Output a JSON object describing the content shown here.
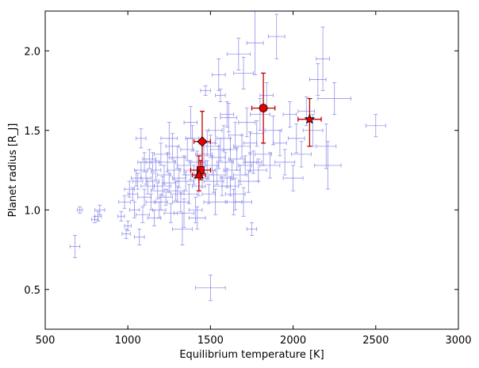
{
  "chart_data": {
    "type": "scatter",
    "xlabel": "Equilibrium temperature [K]",
    "ylabel": "Planet radius [R_J]",
    "xlim": [
      500,
      3000
    ],
    "ylim": [
      0.25,
      2.25
    ],
    "xticks": [
      500,
      1000,
      1500,
      2000,
      2500,
      3000
    ],
    "yticks": [
      0.5,
      1.0,
      1.5,
      2.0
    ],
    "xtick_labels": [
      "500",
      "1000",
      "1500",
      "2000",
      "2500",
      "3000"
    ],
    "ytick_labels": [
      "0.5",
      "1.0",
      "1.5",
      "2.0"
    ],
    "grid": false,
    "legend": "none",
    "background_series": {
      "color": "#6f6fe6",
      "marker": "errorbar-only",
      "points": [
        [
          680,
          0.77,
          30,
          0.07
        ],
        [
          710,
          1.0,
          15,
          0.02
        ],
        [
          800,
          0.94,
          20,
          0.02
        ],
        [
          820,
          0.96,
          20,
          0.03
        ],
        [
          830,
          1.0,
          30,
          0.03
        ],
        [
          960,
          0.96,
          20,
          0.03
        ],
        [
          980,
          1.05,
          35,
          0.04
        ],
        [
          990,
          0.85,
          25,
          0.03
        ],
        [
          1000,
          0.9,
          20,
          0.03
        ],
        [
          1010,
          1.13,
          30,
          0.05
        ],
        [
          1030,
          1.1,
          30,
          0.04
        ],
        [
          1040,
          1.0,
          30,
          0.05
        ],
        [
          1060,
          1.18,
          30,
          0.05
        ],
        [
          1070,
          0.83,
          30,
          0.05
        ],
        [
          1080,
          1.25,
          40,
          0.05
        ],
        [
          1090,
          0.97,
          40,
          0.05
        ],
        [
          1100,
          1.08,
          40,
          0.05
        ],
        [
          1110,
          1.2,
          30,
          0.04
        ],
        [
          1120,
          1.15,
          40,
          0.05
        ],
        [
          1130,
          1.32,
          40,
          0.06
        ],
        [
          1140,
          1.05,
          30,
          0.05
        ],
        [
          1150,
          1.18,
          40,
          0.05
        ],
        [
          1160,
          0.95,
          40,
          0.05
        ],
        [
          1170,
          1.25,
          30,
          0.06
        ],
        [
          1180,
          1.12,
          40,
          0.05
        ],
        [
          1190,
          1.0,
          40,
          0.05
        ],
        [
          1200,
          1.35,
          40,
          0.07
        ],
        [
          1210,
          1.15,
          50,
          0.06
        ],
        [
          1220,
          1.22,
          40,
          0.06
        ],
        [
          1230,
          1.08,
          40,
          0.05
        ],
        [
          1240,
          1.3,
          50,
          0.06
        ],
        [
          1250,
          1.17,
          40,
          0.06
        ],
        [
          1260,
          0.98,
          40,
          0.06
        ],
        [
          1270,
          1.4,
          40,
          0.08
        ],
        [
          1280,
          1.25,
          40,
          0.06
        ],
        [
          1290,
          1.12,
          50,
          0.06
        ],
        [
          1300,
          1.33,
          50,
          0.07
        ],
        [
          1310,
          1.2,
          40,
          0.06
        ],
        [
          1320,
          1.05,
          50,
          0.06
        ],
        [
          1330,
          0.88,
          60,
          0.1
        ],
        [
          1340,
          1.28,
          40,
          0.06
        ],
        [
          1350,
          1.18,
          50,
          0.06
        ],
        [
          1360,
          1.38,
          40,
          0.07
        ],
        [
          1370,
          1.1,
          50,
          0.06
        ],
        [
          1380,
          1.25,
          40,
          0.06
        ],
        [
          1390,
          1.45,
          40,
          0.08
        ],
        [
          1400,
          1.22,
          50,
          0.06
        ],
        [
          1410,
          1.0,
          40,
          0.08
        ],
        [
          1420,
          1.3,
          50,
          0.07
        ],
        [
          1430,
          1.15,
          40,
          0.06
        ],
        [
          1460,
          1.35,
          50,
          0.07
        ],
        [
          1470,
          1.75,
          30,
          0.03
        ],
        [
          1480,
          1.25,
          50,
          0.06
        ],
        [
          1490,
          1.1,
          40,
          0.06
        ],
        [
          1500,
          1.4,
          50,
          0.07
        ],
        [
          1510,
          1.28,
          40,
          0.06
        ],
        [
          1520,
          1.18,
          60,
          0.07
        ],
        [
          1530,
          1.5,
          40,
          0.08
        ],
        [
          1540,
          1.22,
          50,
          0.06
        ],
        [
          1550,
          1.33,
          40,
          0.07
        ],
        [
          1560,
          1.72,
          30,
          0.04
        ],
        [
          1570,
          1.15,
          50,
          0.06
        ],
        [
          1580,
          1.45,
          40,
          0.08
        ],
        [
          1590,
          1.3,
          50,
          0.06
        ],
        [
          1600,
          1.2,
          40,
          0.06
        ],
        [
          1610,
          1.58,
          50,
          0.09
        ],
        [
          1620,
          1.38,
          40,
          0.07
        ],
        [
          1630,
          1.25,
          50,
          0.06
        ],
        [
          1640,
          1.05,
          50,
          0.08
        ],
        [
          1650,
          1.47,
          40,
          0.08
        ],
        [
          1660,
          1.32,
          50,
          0.07
        ],
        [
          1670,
          1.98,
          70,
          0.1
        ],
        [
          1680,
          1.22,
          40,
          0.06
        ],
        [
          1690,
          1.4,
          50,
          0.07
        ],
        [
          1700,
          1.86,
          60,
          0.1
        ],
        [
          1710,
          1.28,
          40,
          0.06
        ],
        [
          1720,
          1.55,
          50,
          0.09
        ],
        [
          1730,
          1.18,
          60,
          0.07
        ],
        [
          1740,
          1.42,
          40,
          0.07
        ],
        [
          1750,
          0.88,
          30,
          0.04
        ],
        [
          1760,
          1.3,
          50,
          0.07
        ],
        [
          1770,
          2.05,
          50,
          0.2
        ],
        [
          1780,
          1.48,
          40,
          0.08
        ],
        [
          1790,
          1.25,
          50,
          0.07
        ],
        [
          1800,
          1.6,
          60,
          0.1
        ],
        [
          1820,
          1.35,
          50,
          0.07
        ],
        [
          1840,
          1.72,
          40,
          0.08
        ],
        [
          1860,
          1.28,
          60,
          0.08
        ],
        [
          1880,
          1.5,
          50,
          0.09
        ],
        [
          1900,
          2.09,
          50,
          0.14
        ],
        [
          1920,
          1.42,
          40,
          0.08
        ],
        [
          1950,
          1.3,
          60,
          0.08
        ],
        [
          1980,
          1.6,
          40,
          0.08
        ],
        [
          2000,
          1.2,
          60,
          0.08
        ],
        [
          2020,
          1.45,
          50,
          0.09
        ],
        [
          2050,
          1.35,
          60,
          0.08
        ],
        [
          2080,
          1.62,
          50,
          0.09
        ],
        [
          2120,
          1.5,
          60,
          0.1
        ],
        [
          2150,
          1.82,
          50,
          0.1
        ],
        [
          2180,
          1.95,
          40,
          0.2
        ],
        [
          2200,
          1.4,
          60,
          0.14
        ],
        [
          2210,
          1.28,
          80,
          0.15
        ],
        [
          2250,
          1.7,
          100,
          0.1
        ],
        [
          2500,
          1.53,
          60,
          0.07
        ],
        [
          1500,
          0.51,
          90,
          0.08
        ],
        [
          1650,
          1.1,
          60,
          0.1
        ],
        [
          1530,
          1.05,
          70,
          0.08
        ],
        [
          1420,
          0.95,
          50,
          0.07
        ],
        [
          1700,
          1.05,
          50,
          0.09
        ],
        [
          1340,
          0.98,
          60,
          0.09
        ],
        [
          1450,
          1.2,
          40,
          0.06
        ],
        [
          1560,
          1.38,
          60,
          0.07
        ],
        [
          1620,
          1.15,
          50,
          0.06
        ],
        [
          1480,
          1.42,
          50,
          0.08
        ],
        [
          1250,
          1.45,
          50,
          0.1
        ],
        [
          1150,
          1.3,
          40,
          0.06
        ],
        [
          1600,
          1.6,
          40,
          0.08
        ],
        [
          1550,
          1.85,
          40,
          0.1
        ],
        [
          1740,
          1.3,
          40,
          0.06
        ],
        [
          1380,
          1.55,
          40,
          0.1
        ],
        [
          1300,
          1.1,
          40,
          0.05
        ],
        [
          1200,
          1.05,
          40,
          0.05
        ],
        [
          1100,
          1.3,
          40,
          0.06
        ],
        [
          1050,
          1.2,
          30,
          0.05
        ],
        [
          1080,
          1.45,
          30,
          0.06
        ]
      ]
    },
    "highlight_series": {
      "color": "#e60000",
      "points": [
        {
          "x": 1450,
          "y": 1.43,
          "xerr": 50,
          "yerr_up": 0.19,
          "yerr_down": 0.19,
          "marker": "diamond"
        },
        {
          "x": 1440,
          "y": 1.25,
          "xerr": 60,
          "yerr_up": 0.06,
          "yerr_down": 0.06,
          "marker": "square"
        },
        {
          "x": 1430,
          "y": 1.22,
          "xerr": 40,
          "yerr_up": 0.12,
          "yerr_down": 0.1,
          "marker": "triangle"
        },
        {
          "x": 1820,
          "y": 1.64,
          "xerr": 70,
          "yerr_up": 0.22,
          "yerr_down": 0.22,
          "marker": "circle"
        },
        {
          "x": 2100,
          "y": 1.57,
          "xerr": 70,
          "yerr_up": 0.13,
          "yerr_down": 0.17,
          "marker": "star"
        }
      ]
    }
  }
}
